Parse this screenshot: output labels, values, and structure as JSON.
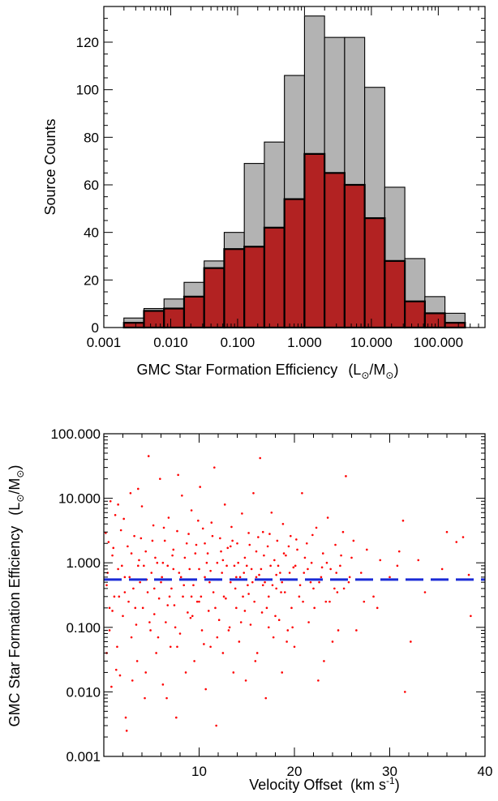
{
  "chart_data": [
    {
      "type": "bar",
      "subtype": "histogram",
      "x_scale": "log",
      "xlim": [
        0.001,
        500
      ],
      "ylim": [
        0,
        135
      ],
      "xlabel": "GMC Star Formation Efficiency",
      "xlabel_units_text": "(L",
      "xlabel_units_sub1": "⊙",
      "xlabel_units_mid": "/M",
      "xlabel_units_sub2": "⊙",
      "xlabel_units_end": ")",
      "ylabel": "Source Counts",
      "x_ticks": [
        0.001,
        0.01,
        0.1,
        1.0,
        10.0,
        100.0
      ],
      "x_tick_labels": [
        "0.001",
        "0.010",
        "0.100",
        "1.000",
        "10.000",
        "100.000"
      ],
      "y_ticks": [
        0,
        20,
        40,
        60,
        80,
        100,
        120
      ],
      "y_tick_labels": [
        "0",
        "20",
        "40",
        "60",
        "80",
        "100",
        "120"
      ],
      "bin_edges_log10": [
        -2.7,
        -2.4,
        -2.1,
        -1.8,
        -1.5,
        -1.2,
        -0.9,
        -0.6,
        -0.3,
        0.0,
        0.3,
        0.6,
        0.9,
        1.2,
        1.5,
        1.8,
        2.1,
        2.4
      ],
      "series": [
        {
          "color": "#b3b3b3",
          "values": [
            4,
            8,
            12,
            19,
            28,
            40,
            69,
            78,
            106,
            131,
            122,
            122,
            101,
            59,
            29,
            13,
            6,
            1
          ]
        },
        {
          "color": "#b22222",
          "values": [
            2,
            7,
            8,
            13,
            25,
            33,
            34,
            42,
            54,
            73,
            65,
            60,
            46,
            28,
            11,
            6,
            2,
            0
          ]
        }
      ]
    },
    {
      "type": "scatter",
      "x_scale": "linear",
      "y_scale": "log",
      "xlim": [
        0,
        40
      ],
      "ylim": [
        0.001,
        100
      ],
      "xlabel": "Velocity Offset",
      "xlabel_units": "(km s",
      "xlabel_units_sup": "-1",
      "xlabel_units_end": ")",
      "ylabel": "GMC Star Formation Efficiency",
      "ylabel_units_text": "(L",
      "ylabel_units_sub1": "⊙",
      "ylabel_units_mid": "/M",
      "ylabel_units_sub2": "⊙",
      "ylabel_units_end": ")",
      "x_ticks": [
        10,
        20,
        30,
        40
      ],
      "x_tick_labels": [
        "10",
        "20",
        "30",
        "40"
      ],
      "y_ticks": [
        0.001,
        0.01,
        0.1,
        1,
        10,
        100
      ],
      "y_tick_labels": [
        "0.001",
        "0.010",
        "0.100",
        "1.000",
        "10.000",
        "100.000"
      ],
      "point_color": "#ff0000",
      "reference_line": {
        "y": 0.55,
        "color": "#1a2bd6",
        "style": "dashed"
      },
      "points": [
        [
          0.3,
          0.45
        ],
        [
          0.5,
          2.1
        ],
        [
          0.6,
          0.09
        ],
        [
          0.8,
          0.012
        ],
        [
          0.9,
          1.3
        ],
        [
          1.1,
          0.3
        ],
        [
          1.2,
          5.5
        ],
        [
          1.4,
          0.05
        ],
        [
          1.5,
          0.8
        ],
        [
          1.7,
          0.018
        ],
        [
          1.8,
          3.2
        ],
        [
          2.0,
          0.15
        ],
        [
          2.2,
          0.6
        ],
        [
          2.3,
          0.004
        ],
        [
          2.5,
          1.8
        ],
        [
          2.6,
          0.25
        ],
        [
          2.8,
          12
        ],
        [
          2.9,
          0.07
        ],
        [
          3.1,
          0.4
        ],
        [
          3.2,
          2.6
        ],
        [
          3.4,
          0.11
        ],
        [
          3.5,
          0.03
        ],
        [
          3.7,
          1.1
        ],
        [
          3.8,
          0.5
        ],
        [
          4.0,
          7.5
        ],
        [
          4.1,
          0.2
        ],
        [
          4.3,
          0.008
        ],
        [
          4.4,
          1.5
        ],
        [
          4.6,
          0.35
        ],
        [
          4.7,
          45
        ],
        [
          4.9,
          0.09
        ],
        [
          5.0,
          0.7
        ],
        [
          5.2,
          3.8
        ],
        [
          5.3,
          0.16
        ],
        [
          5.5,
          0.04
        ],
        [
          5.6,
          1.0
        ],
        [
          5.8,
          0.28
        ],
        [
          5.9,
          20
        ],
        [
          6.1,
          0.6
        ],
        [
          6.2,
          0.013
        ],
        [
          6.4,
          2.2
        ],
        [
          6.5,
          0.12
        ],
        [
          6.7,
          0.9
        ],
        [
          6.8,
          5.0
        ],
        [
          7.0,
          0.05
        ],
        [
          7.1,
          0.4
        ],
        [
          7.3,
          1.6
        ],
        [
          7.4,
          0.22
        ],
        [
          7.6,
          0.004
        ],
        [
          7.7,
          3.1
        ],
        [
          7.9,
          0.7
        ],
        [
          8.0,
          0.08
        ],
        [
          8.2,
          11
        ],
        [
          8.3,
          0.3
        ],
        [
          8.5,
          1.2
        ],
        [
          8.6,
          0.02
        ],
        [
          8.8,
          0.55
        ],
        [
          8.9,
          2.8
        ],
        [
          9.1,
          0.14
        ],
        [
          9.2,
          6.5
        ],
        [
          9.4,
          0.45
        ],
        [
          9.5,
          0.03
        ],
        [
          9.7,
          1.9
        ],
        [
          9.8,
          0.25
        ],
        [
          10.0,
          0.8
        ],
        [
          10.1,
          15
        ],
        [
          10.3,
          0.09
        ],
        [
          10.4,
          3.4
        ],
        [
          10.6,
          0.6
        ],
        [
          10.7,
          0.011
        ],
        [
          10.9,
          1.4
        ],
        [
          11.0,
          0.18
        ],
        [
          11.2,
          0.05
        ],
        [
          11.3,
          4.2
        ],
        [
          11.5,
          0.35
        ],
        [
          11.6,
          30
        ],
        [
          11.8,
          0.003
        ],
        [
          11.9,
          1.0
        ],
        [
          12.1,
          0.13
        ],
        [
          12.2,
          2.4
        ],
        [
          12.4,
          0.7
        ],
        [
          12.5,
          0.04
        ],
        [
          12.7,
          8.0
        ],
        [
          12.8,
          0.28
        ],
        [
          13.0,
          1.7
        ],
        [
          13.1,
          0.09
        ],
        [
          13.3,
          0.5
        ],
        [
          13.4,
          3.6
        ],
        [
          13.6,
          0.02
        ],
        [
          13.7,
          0.9
        ],
        [
          13.9,
          0.2
        ],
        [
          14.0,
          2.0
        ],
        [
          14.2,
          0.06
        ],
        [
          14.3,
          0.6
        ],
        [
          14.5,
          5.8
        ],
        [
          14.6,
          0.3
        ],
        [
          14.8,
          1.2
        ],
        [
          14.9,
          0.015
        ],
        [
          15.1,
          0.45
        ],
        [
          15.2,
          2.9
        ],
        [
          15.4,
          0.11
        ],
        [
          15.5,
          0.8
        ],
        [
          15.7,
          12
        ],
        [
          15.8,
          0.25
        ],
        [
          16.0,
          1.5
        ],
        [
          16.1,
          0.04
        ],
        [
          16.3,
          0.65
        ],
        [
          16.4,
          42
        ],
        [
          16.6,
          0.17
        ],
        [
          16.7,
          3.0
        ],
        [
          16.9,
          0.5
        ],
        [
          17.0,
          0.008
        ],
        [
          17.2,
          1.8
        ],
        [
          17.3,
          0.3
        ],
        [
          17.5,
          0.9
        ],
        [
          17.6,
          6.0
        ],
        [
          17.8,
          0.07
        ],
        [
          17.9,
          1.1
        ],
        [
          18.1,
          0.4
        ],
        [
          18.2,
          2.2
        ],
        [
          18.4,
          0.13
        ],
        [
          18.5,
          0.7
        ],
        [
          18.7,
          0.02
        ],
        [
          18.8,
          4.0
        ],
        [
          19.0,
          0.35
        ],
        [
          19.1,
          1.3
        ],
        [
          19.3,
          0.09
        ],
        [
          19.4,
          0.55
        ],
        [
          19.6,
          2.6
        ],
        [
          19.7,
          0.2
        ],
        [
          19.9,
          0.85
        ],
        [
          20.0,
          0.05
        ],
        [
          20.3,
          1.6
        ],
        [
          20.5,
          0.3
        ],
        [
          20.8,
          12
        ],
        [
          21.0,
          0.7
        ],
        [
          21.3,
          2.0
        ],
        [
          21.5,
          0.12
        ],
        [
          21.8,
          1.0
        ],
        [
          22.0,
          0.4
        ],
        [
          22.3,
          3.5
        ],
        [
          22.5,
          0.015
        ],
        [
          22.8,
          0.6
        ],
        [
          23.0,
          1.4
        ],
        [
          23.3,
          0.25
        ],
        [
          23.5,
          5.0
        ],
        [
          23.8,
          0.8
        ],
        [
          24.0,
          0.06
        ],
        [
          24.3,
          1.9
        ],
        [
          24.5,
          0.35
        ],
        [
          24.8,
          0.9
        ],
        [
          25.1,
          3.0
        ],
        [
          25.4,
          22
        ],
        [
          25.7,
          0.5
        ],
        [
          26.0,
          1.2
        ],
        [
          26.5,
          0.09
        ],
        [
          27.0,
          0.7
        ],
        [
          27.6,
          1.6
        ],
        [
          28.3,
          0.3
        ],
        [
          28.7,
          0.2
        ],
        [
          30.0,
          0.6
        ],
        [
          30.8,
          0.9
        ],
        [
          31.0,
          1.5
        ],
        [
          31.4,
          4.5
        ],
        [
          31.6,
          0.01
        ],
        [
          32.2,
          0.06
        ],
        [
          33.0,
          1.1
        ],
        [
          34.6,
          0.55
        ],
        [
          35.5,
          0.8
        ],
        [
          36.0,
          3.0
        ],
        [
          37.0,
          2.1
        ],
        [
          37.7,
          2.5
        ],
        [
          38.3,
          0.65
        ],
        [
          38.5,
          0.15
        ],
        [
          0.7,
          9
        ],
        [
          1.3,
          0.022
        ],
        [
          2.4,
          0.0025
        ],
        [
          3.3,
          0.2
        ],
        [
          3.6,
          14
        ],
        [
          6.6,
          0.008
        ],
        [
          8.1,
          0.6
        ],
        [
          9.6,
          1.4
        ],
        [
          10.2,
          0.3
        ],
        [
          12.0,
          0.55
        ],
        [
          13.2,
          0.1
        ],
        [
          15.0,
          0.9
        ],
        [
          16.2,
          2.5
        ],
        [
          18.0,
          0.15
        ],
        [
          19.2,
          0.06
        ],
        [
          20.6,
          0.45
        ],
        [
          22.1,
          0.2
        ],
        [
          23.1,
          0.03
        ],
        [
          24.6,
          0.09
        ],
        [
          25.8,
          0.6
        ],
        [
          29.0,
          1.1
        ],
        [
          33.7,
          0.35
        ],
        [
          0.4,
          0.7
        ],
        [
          1.0,
          1.7
        ],
        [
          1.6,
          0.3
        ],
        [
          2.1,
          4.8
        ],
        [
          2.7,
          0.6
        ],
        [
          3.0,
          0.015
        ],
        [
          3.9,
          2.4
        ],
        [
          4.5,
          0.55
        ],
        [
          4.8,
          0.12
        ],
        [
          5.4,
          1.2
        ],
        [
          5.7,
          0.07
        ],
        [
          6.0,
          0.5
        ],
        [
          6.3,
          3.5
        ],
        [
          6.9,
          0.3
        ],
        [
          7.2,
          1.3
        ],
        [
          7.5,
          0.1
        ],
        [
          7.8,
          23
        ],
        [
          8.4,
          0.45
        ],
        [
          8.7,
          2.0
        ],
        [
          9.0,
          0.8
        ],
        [
          9.3,
          0.15
        ],
        [
          9.9,
          4.5
        ],
        [
          10.5,
          0.055
        ],
        [
          10.8,
          1.0
        ],
        [
          11.1,
          0.5
        ],
        [
          11.4,
          2.6
        ],
        [
          11.7,
          0.2
        ],
        [
          12.3,
          1.5
        ],
        [
          12.6,
          0.3
        ],
        [
          12.9,
          0.9
        ],
        [
          13.5,
          2.2
        ],
        [
          13.8,
          0.4
        ],
        [
          14.1,
          1.0
        ],
        [
          14.4,
          0.12
        ],
        [
          14.7,
          0.7
        ],
        [
          15.3,
          1.9
        ],
        [
          15.6,
          0.5
        ],
        [
          15.9,
          0.03
        ],
        [
          16.5,
          0.8
        ],
        [
          16.8,
          1.3
        ],
        [
          17.1,
          0.2
        ],
        [
          17.4,
          2.8
        ],
        [
          17.7,
          0.45
        ],
        [
          18.3,
          0.9
        ],
        [
          18.6,
          0.35
        ],
        [
          18.9,
          1.4
        ],
        [
          19.5,
          0.7
        ],
        [
          19.8,
          0.1
        ],
        [
          20.2,
          2.3
        ],
        [
          20.9,
          0.25
        ],
        [
          21.4,
          0.8
        ],
        [
          21.9,
          2.7
        ],
        [
          22.6,
          0.5
        ],
        [
          23.4,
          1.0
        ],
        [
          24.2,
          0.4
        ],
        [
          24.9,
          1.3
        ],
        [
          26.2,
          2.2
        ],
        [
          27.3,
          0.25
        ],
        [
          0.2,
          2.9
        ],
        [
          0.6,
          0.2
        ],
        [
          1.9,
          0.9
        ],
        [
          2.9,
          1.4
        ],
        [
          4.2,
          0.9
        ],
        [
          5.1,
          2.2
        ],
        [
          6.2,
          1.0
        ],
        [
          7.3,
          0.8
        ],
        [
          8.8,
          0.17
        ],
        [
          10.0,
          0.25
        ],
        [
          11.2,
          0.75
        ],
        [
          12.5,
          1.1
        ],
        [
          13.9,
          0.6
        ],
        [
          15.2,
          0.33
        ],
        [
          16.7,
          0.45
        ],
        [
          18.1,
          0.65
        ],
        [
          19.4,
          1.8
        ],
        [
          21.1,
          1.2
        ],
        [
          22.9,
          0.85
        ],
        [
          24.4,
          0.7
        ],
        [
          0.3,
          0.04
        ],
        [
          0.9,
          0.18
        ],
        [
          1.5,
          8
        ],
        [
          2.2,
          0.35
        ],
        [
          3.6,
          0.9
        ],
        [
          4.4,
          0.02
        ],
        [
          5.3,
          0.4
        ],
        [
          6.7,
          0.22
        ],
        [
          7.7,
          0.05
        ],
        [
          9.2,
          0.3
        ],
        [
          10.6,
          2.0
        ],
        [
          11.9,
          0.07
        ],
        [
          13.3,
          1.8
        ],
        [
          14.8,
          0.18
        ],
        [
          16.0,
          0.6
        ],
        [
          17.3,
          0.1
        ],
        [
          18.7,
          0.5
        ],
        [
          20.1,
          0.9
        ],
        [
          21.7,
          0.5
        ],
        [
          23.7,
          0.25
        ],
        [
          25.2,
          0.4
        ]
      ]
    }
  ]
}
